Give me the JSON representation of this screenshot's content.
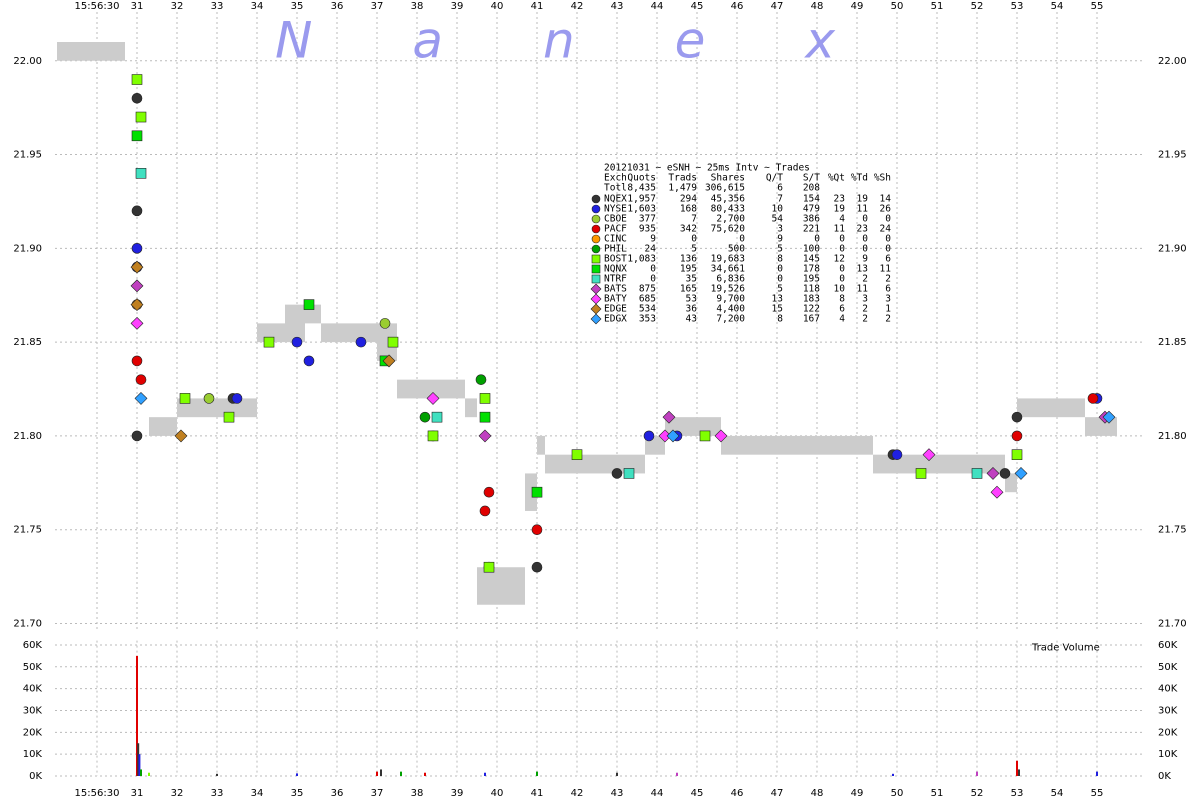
{
  "chart_data": [
    {
      "type": "scatter",
      "watermark": "N a n e x",
      "table_title": "20121031 ~ eSNH ~ 25ms Intv ~ Trades",
      "columns": [
        "Exch",
        "Quots",
        "Trads",
        "Shares",
        "Q/T",
        "S/T",
        "%Qt",
        "%Td",
        "%Sh"
      ],
      "total": {
        "name": "Totl",
        "stats": [
          "8,435",
          "1,479",
          "306,615",
          "6",
          "208"
        ]
      },
      "xlim": [
        28.95,
        56.2
      ],
      "xticks": [
        {
          "value": 30,
          "label": "15:56:30"
        },
        31,
        32,
        33,
        34,
        35,
        36,
        37,
        38,
        39,
        40,
        41,
        42,
        43,
        44,
        45,
        46,
        47,
        48,
        49,
        50,
        51,
        52,
        53,
        54,
        55
      ],
      "ylim": [
        21.696,
        22.026
      ],
      "yticks": [
        {
          "value": 21.7,
          "label": "21.70"
        },
        21.75,
        {
          "value": 21.8,
          "label": "21.80"
        },
        21.85,
        {
          "value": 21.9,
          "label": "21.90"
        },
        21.95,
        {
          "value": 22.0,
          "label": "22.00"
        }
      ],
      "grid": true,
      "nbbo": {
        "color": "#cccccc",
        "x": [
          29.0,
          31.3,
          32.0,
          33.0,
          34.0,
          34.7,
          35.2,
          35.6,
          37.0,
          37.5,
          38.3,
          39.2,
          39.5,
          40.7,
          41.0,
          41.2,
          42.7,
          43.7,
          44.2,
          45.6,
          49.4,
          50.5,
          52.7,
          53.0,
          54.7
        ],
        "x_end": [
          30.7,
          32.0,
          33.0,
          34.0,
          34.7,
          35.2,
          35.6,
          37.0,
          37.5,
          38.3,
          39.2,
          39.5,
          40.7,
          41.0,
          41.2,
          42.7,
          43.7,
          44.2,
          45.6,
          49.4,
          50.5,
          52.7,
          53.0,
          54.7,
          55.5
        ],
        "low": [
          22.0,
          21.8,
          21.81,
          21.81,
          21.85,
          21.85,
          21.86,
          21.85,
          21.84,
          21.82,
          21.82,
          21.81,
          21.71,
          21.76,
          21.79,
          21.78,
          21.78,
          21.79,
          21.8,
          21.79,
          21.78,
          21.78,
          21.77,
          21.81,
          21.8
        ],
        "high": [
          22.01,
          21.81,
          21.82,
          21.82,
          21.86,
          21.87,
          21.87,
          21.86,
          21.86,
          21.83,
          21.83,
          21.82,
          21.73,
          21.78,
          21.8,
          21.79,
          21.79,
          21.8,
          21.81,
          21.8,
          21.79,
          21.79,
          21.78,
          21.82,
          21.81
        ]
      },
      "series": [
        {
          "name": "NQEX",
          "color": "#333333",
          "marker": "circle",
          "stats": [
            "1,957",
            "294",
            "45,356",
            "7",
            "154",
            "23",
            "19",
            "14"
          ],
          "x": [
            31.0,
            31.0,
            31.0,
            33.4,
            38.4,
            39.8,
            41.0,
            43.0,
            49.9,
            52.7,
            53.0
          ],
          "values": [
            21.98,
            21.92,
            21.8,
            21.82,
            21.8,
            21.73,
            21.73,
            21.78,
            21.79,
            21.78,
            21.81
          ]
        },
        {
          "name": "NYSE",
          "color": "#2020e0",
          "marker": "circle",
          "stats": [
            "1,603",
            "168",
            "80,433",
            "10",
            "479",
            "19",
            "11",
            "26"
          ],
          "x": [
            31.0,
            31.0,
            33.5,
            35.0,
            35.3,
            36.6,
            43.8,
            44.5,
            50.0,
            55.0
          ],
          "values": [
            21.9,
            21.89,
            21.82,
            21.85,
            21.84,
            21.85,
            21.8,
            21.8,
            21.79,
            21.82
          ]
        },
        {
          "name": "CBOE",
          "color": "#9acd32",
          "marker": "circle",
          "stats": [
            "377",
            "7",
            "2,700",
            "54",
            "386",
            "4",
            "0",
            "0"
          ],
          "x": [
            32.8,
            37.2
          ],
          "values": [
            21.82,
            21.86
          ]
        },
        {
          "name": "PACF",
          "color": "#e00000",
          "marker": "circle",
          "stats": [
            "935",
            "342",
            "75,620",
            "3",
            "221",
            "11",
            "23",
            "24"
          ],
          "x": [
            31.0,
            31.1,
            39.8,
            39.7,
            41.0,
            53.0,
            54.9
          ],
          "values": [
            21.84,
            21.83,
            21.77,
            21.76,
            21.75,
            21.8,
            21.82
          ]
        },
        {
          "name": "CINC",
          "color": "#ff9900",
          "marker": "circle",
          "stats": [
            "9",
            "0",
            "0",
            "9",
            "0",
            "0",
            "0",
            "0"
          ],
          "x": [
            31.0
          ],
          "values": [
            21.87
          ]
        },
        {
          "name": "PHIL",
          "color": "#00a000",
          "marker": "circle",
          "stats": [
            "24",
            "5",
            "500",
            "5",
            "100",
            "0",
            "0",
            "0"
          ],
          "x": [
            38.2,
            39.6
          ],
          "values": [
            21.81,
            21.83
          ]
        },
        {
          "name": "BOST",
          "color": "#80ff00",
          "marker": "square",
          "stats": [
            "1,083",
            "136",
            "19,683",
            "8",
            "145",
            "12",
            "9",
            "6"
          ],
          "x": [
            31.0,
            31.1,
            32.2,
            33.3,
            34.3,
            37.4,
            38.4,
            39.7,
            39.8,
            42.0,
            45.2,
            50.6,
            53.0
          ],
          "values": [
            21.99,
            21.97,
            21.82,
            21.81,
            21.85,
            21.85,
            21.8,
            21.82,
            21.73,
            21.79,
            21.8,
            21.78,
            21.79
          ]
        },
        {
          "name": "NQNX",
          "color": "#00e000",
          "marker": "square",
          "stats": [
            "0",
            "195",
            "34,661",
            "0",
            "178",
            "0",
            "13",
            "11"
          ],
          "x": [
            31.0,
            35.3,
            37.2,
            39.7,
            41.0
          ],
          "values": [
            21.96,
            21.87,
            21.84,
            21.81,
            21.77
          ]
        },
        {
          "name": "NTRF",
          "color": "#40e0c0",
          "marker": "square",
          "stats": [
            "0",
            "35",
            "6,836",
            "0",
            "195",
            "0",
            "2",
            "2"
          ],
          "x": [
            31.1,
            38.5,
            43.3,
            52.0
          ],
          "values": [
            21.94,
            21.81,
            21.78,
            21.78
          ]
        },
        {
          "name": "BATS",
          "color": "#c040c0",
          "marker": "diamond",
          "stats": [
            "875",
            "165",
            "19,526",
            "5",
            "118",
            "10",
            "11",
            "6"
          ],
          "x": [
            31.0,
            39.7,
            44.3,
            52.4,
            55.2
          ],
          "values": [
            21.88,
            21.8,
            21.81,
            21.78,
            21.81
          ]
        },
        {
          "name": "BATY",
          "color": "#ff40ff",
          "marker": "diamond",
          "stats": [
            "685",
            "53",
            "9,700",
            "13",
            "183",
            "8",
            "3",
            "3"
          ],
          "x": [
            31.0,
            38.4,
            44.2,
            45.6,
            50.8,
            52.5
          ],
          "values": [
            21.86,
            21.82,
            21.8,
            21.8,
            21.79,
            21.77
          ]
        },
        {
          "name": "EDGE",
          "color": "#c08020",
          "marker": "diamond",
          "stats": [
            "534",
            "36",
            "4,400",
            "15",
            "122",
            "6",
            "2",
            "1"
          ],
          "x": [
            31.0,
            31.0,
            32.1,
            37.3
          ],
          "values": [
            21.89,
            21.87,
            21.8,
            21.84
          ]
        },
        {
          "name": "EDGX",
          "color": "#30a0ff",
          "marker": "diamond",
          "stats": [
            "353",
            "43",
            "7,200",
            "8",
            "167",
            "4",
            "2",
            "2"
          ],
          "x": [
            31.1,
            44.4,
            53.1,
            55.3
          ],
          "values": [
            21.82,
            21.8,
            21.78,
            21.81
          ]
        }
      ]
    },
    {
      "type": "bar",
      "label": "Trade Volume",
      "xlim": [
        28.95,
        56.2
      ],
      "xticks": [
        {
          "value": 30,
          "label": "15:56:30"
        },
        31,
        32,
        33,
        34,
        35,
        36,
        37,
        38,
        39,
        40,
        41,
        42,
        43,
        44,
        45,
        46,
        47,
        48,
        49,
        50,
        51,
        52,
        53,
        54,
        55
      ],
      "ylim": [
        0,
        62000
      ],
      "yticks": [
        {
          "value": 0,
          "label": "0K"
        },
        {
          "value": 10000,
          "label": "10K"
        },
        {
          "value": 20000,
          "label": "20K"
        },
        {
          "value": 30000,
          "label": "30K"
        },
        {
          "value": 40000,
          "label": "40K"
        },
        {
          "value": 50000,
          "label": "50K"
        },
        {
          "value": 60000,
          "label": "60K"
        }
      ],
      "grid": true,
      "x": [
        31.0,
        31.03,
        31.06,
        31.1,
        31.3,
        33.0,
        35.0,
        37.0,
        37.1,
        37.6,
        38.2,
        39.7,
        41.0,
        43.0,
        44.5,
        49.9,
        52.0,
        53.0,
        53.05,
        55.0
      ],
      "values": [
        55000,
        15000,
        10000,
        3000,
        1500,
        1000,
        1200,
        2000,
        3000,
        2000,
        1500,
        1500,
        2000,
        1500,
        1500,
        1000,
        2000,
        7000,
        3000,
        2000
      ],
      "colors": [
        "#e00000",
        "#333333",
        "#2020e0",
        "#00a000",
        "#80ff00",
        "#333333",
        "#2020e0",
        "#e00000",
        "#333333",
        "#00a000",
        "#e00000",
        "#2020e0",
        "#00a000",
        "#333333",
        "#c040c0",
        "#2020e0",
        "#c040c0",
        "#e00000",
        "#333333",
        "#2020e0"
      ]
    }
  ]
}
